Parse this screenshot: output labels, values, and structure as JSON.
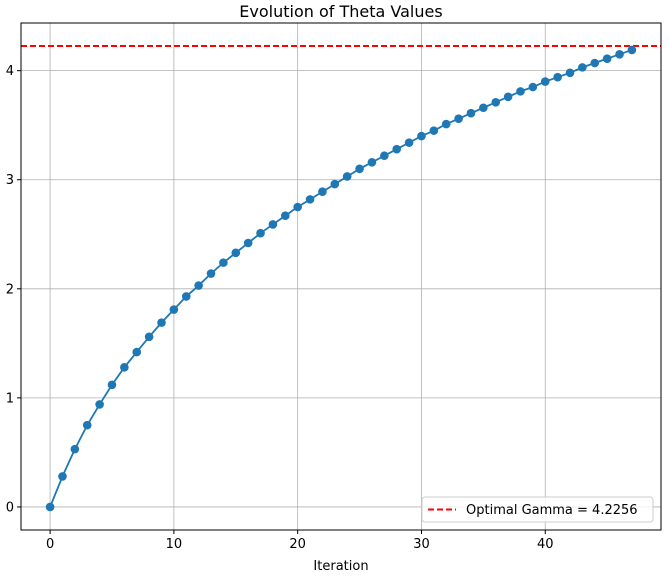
{
  "chart_data": {
    "type": "line",
    "title": "Evolution of Theta Values",
    "xlabel": "Iteration",
    "ylabel": "",
    "xlim": [
      -2.35,
      49.35
    ],
    "ylim": [
      -0.2113,
      4.4369
    ],
    "xticks": [
      0,
      10,
      20,
      30,
      40
    ],
    "yticks": [
      0,
      1,
      2,
      3,
      4
    ],
    "xtick_labels": [
      "0",
      "10",
      "20",
      "30",
      "40"
    ],
    "ytick_labels": [
      "0",
      "1",
      "2",
      "3",
      "4"
    ],
    "grid": true,
    "legend_position": "lower-right",
    "series": [
      {
        "color": "#1f77b4",
        "marker": "circle",
        "x": [
          0,
          1,
          2,
          3,
          4,
          5,
          6,
          7,
          8,
          9,
          10,
          11,
          12,
          13,
          14,
          15,
          16,
          17,
          18,
          19,
          20,
          21,
          22,
          23,
          24,
          25,
          26,
          27,
          28,
          29,
          30,
          31,
          32,
          33,
          34,
          35,
          36,
          37,
          38,
          39,
          40,
          41,
          42,
          43,
          44,
          45,
          46,
          47
        ],
        "y": [
          0.0,
          0.28,
          0.53,
          0.75,
          0.94,
          1.12,
          1.28,
          1.42,
          1.56,
          1.69,
          1.81,
          1.93,
          2.03,
          2.14,
          2.24,
          2.33,
          2.42,
          2.51,
          2.59,
          2.67,
          2.75,
          2.82,
          2.89,
          2.96,
          3.03,
          3.1,
          3.16,
          3.22,
          3.28,
          3.34,
          3.4,
          3.45,
          3.51,
          3.56,
          3.61,
          3.66,
          3.71,
          3.76,
          3.81,
          3.85,
          3.9,
          3.94,
          3.98,
          4.03,
          4.07,
          4.11,
          4.15,
          4.19
        ]
      }
    ],
    "reference_line": {
      "name": "Optimal Gamma = 4.2256",
      "value": 4.2256,
      "color": "#ff0000",
      "style": "dashed"
    }
  }
}
